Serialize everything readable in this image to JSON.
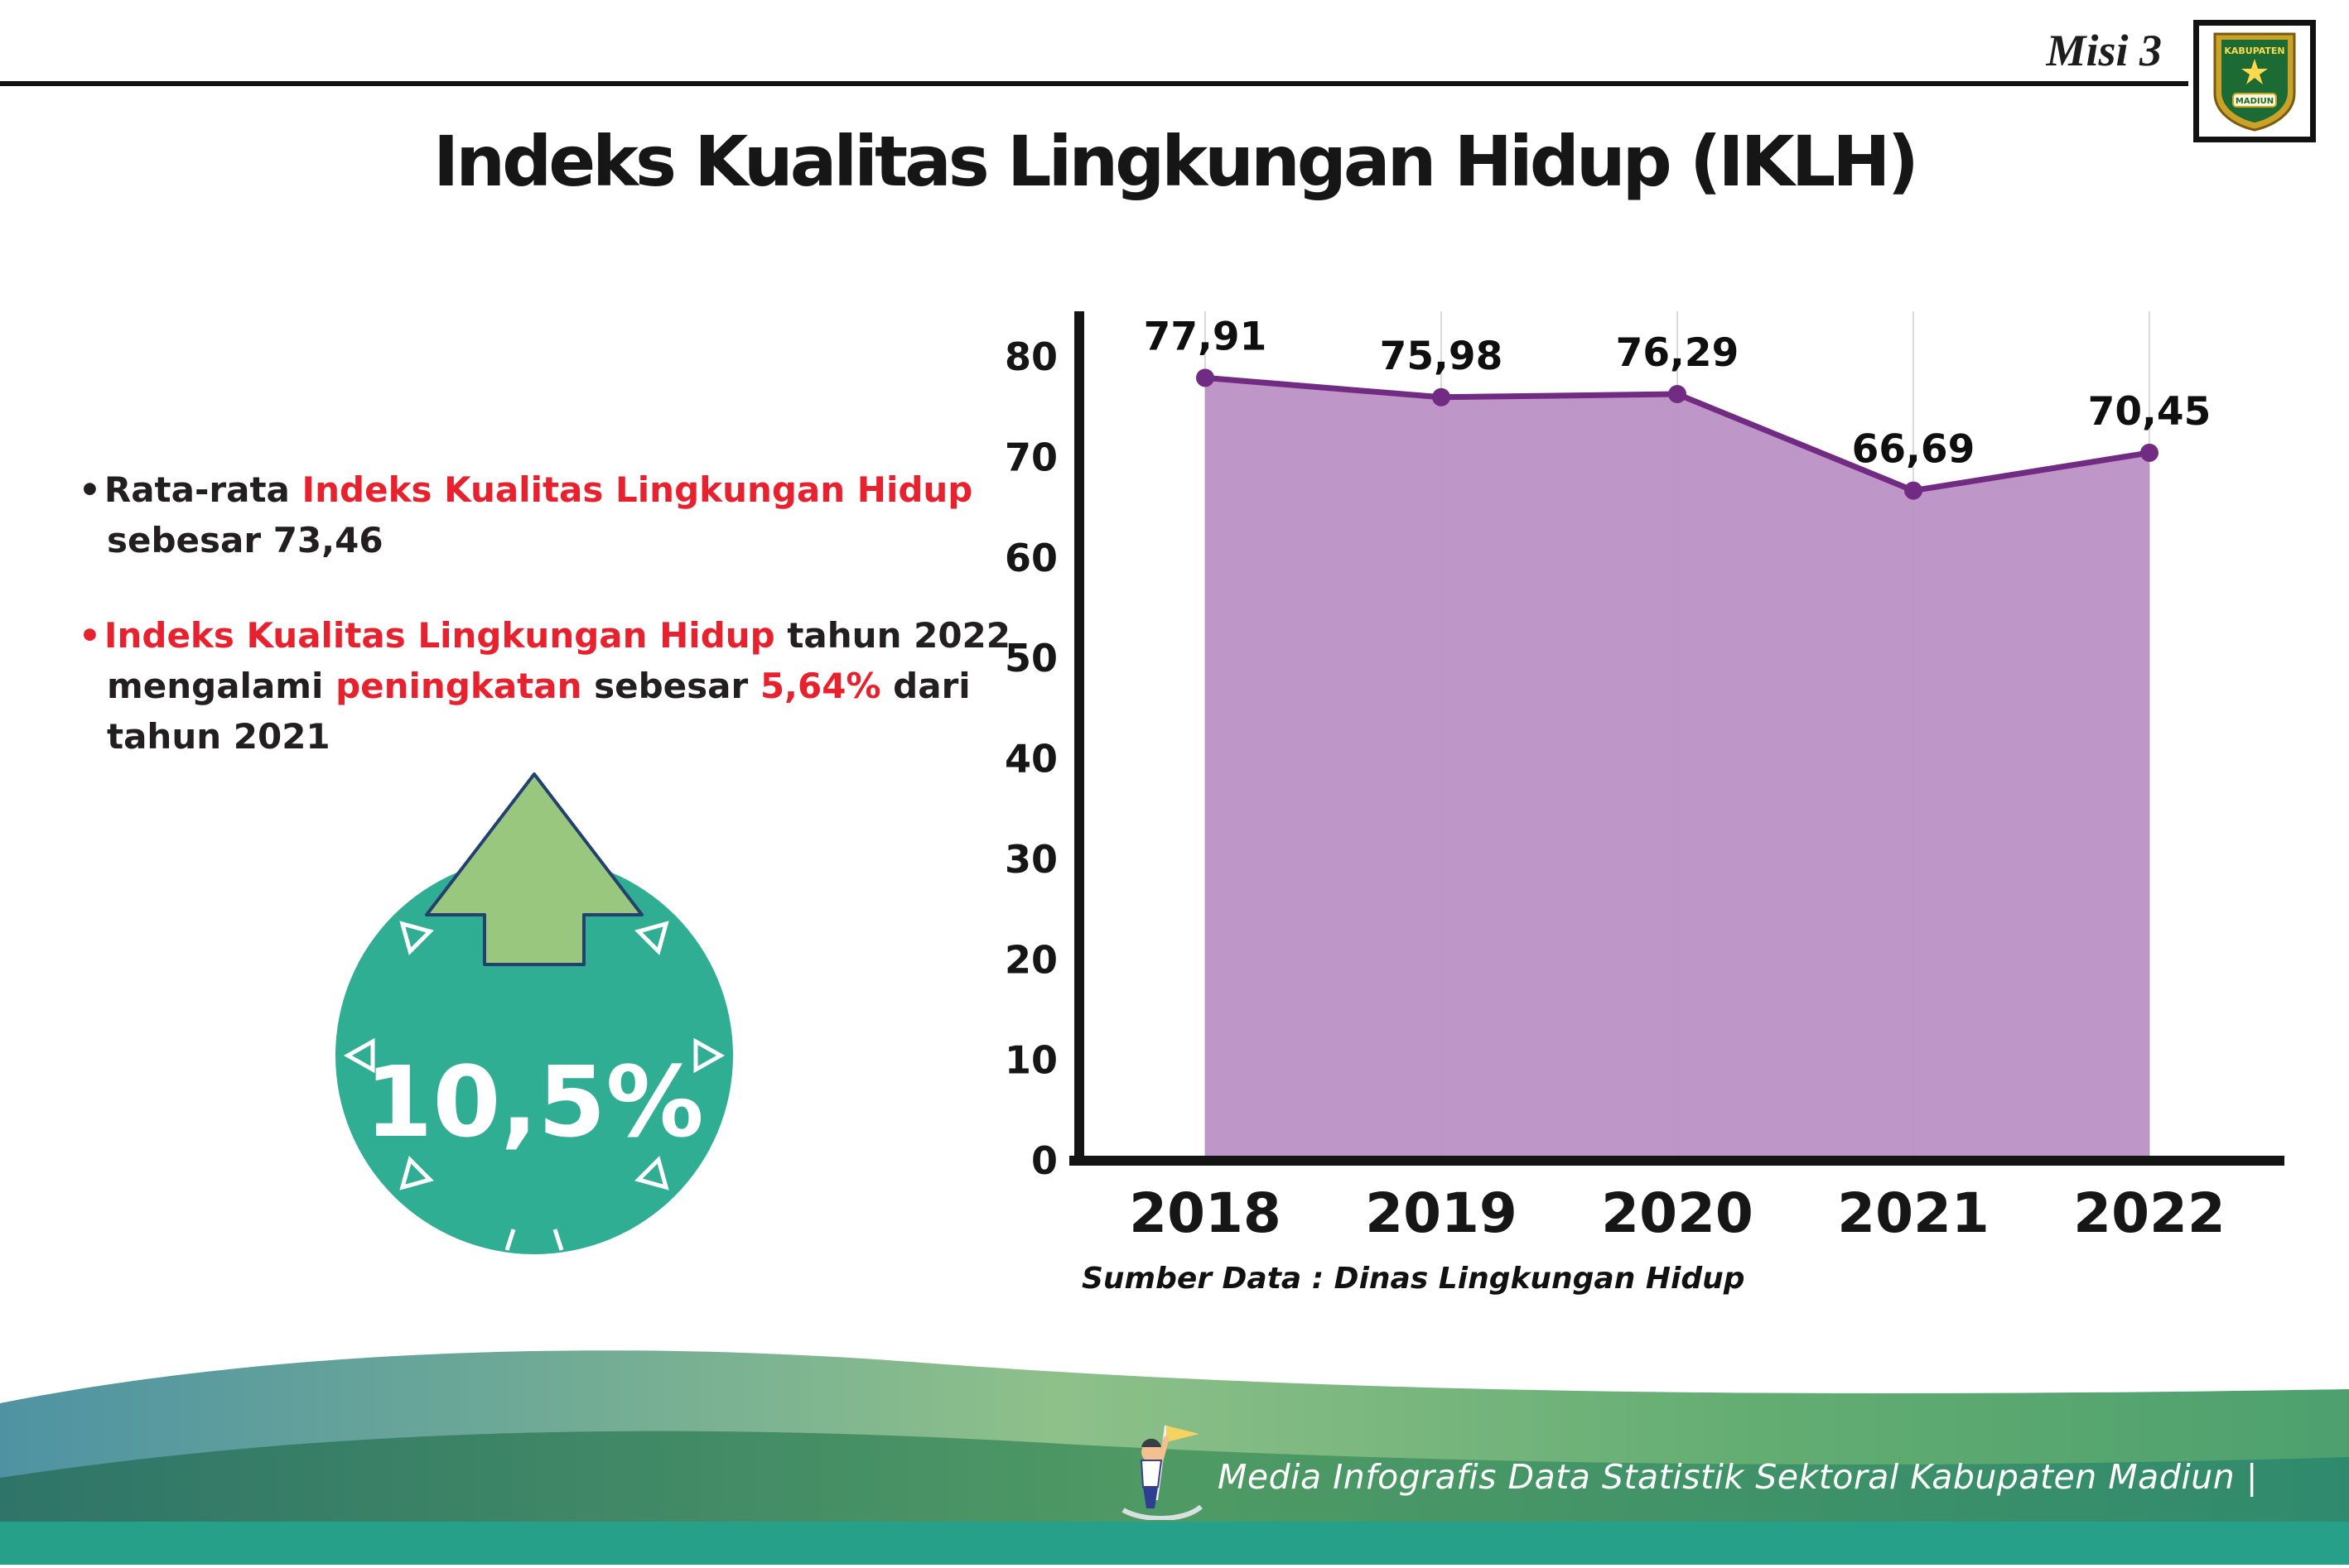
{
  "page": {
    "misi_label": "Misi 3",
    "title": "Indeks Kualitas Lingkungan Hidup (IKLH)"
  },
  "logo": {
    "top_text": "KABUPATEN",
    "bottom_text": "MADIUN"
  },
  "bullets": [
    {
      "segments": [
        {
          "text": "Rata-rata ",
          "color": "dark"
        },
        {
          "text": "Indeks Kualitas Lingkungan Hidup",
          "color": "red"
        },
        {
          "text": " sebesar 73,46",
          "color": "dark"
        }
      ]
    },
    {
      "segments": [
        {
          "text": "Indeks Kualitas Lingkungan Hidup",
          "color": "red"
        },
        {
          "text": " tahun 2022 mengalami ",
          "color": "dark"
        },
        {
          "text": "peningkatan",
          "color": "red"
        },
        {
          "text": " sebesar ",
          "color": "dark"
        },
        {
          "text": "5,64%",
          "color": "red"
        },
        {
          "text": " dari tahun 2021",
          "color": "dark"
        }
      ]
    }
  ],
  "badge": {
    "value": "10,5%"
  },
  "chart_data": {
    "type": "area",
    "title": "Indeks Kualitas Lingkungan Hidup (IKLH)",
    "categories": [
      "2018",
      "2019",
      "2020",
      "2021",
      "2022"
    ],
    "values": [
      77.91,
      75.98,
      76.29,
      66.69,
      70.45
    ],
    "point_labels": [
      "77,91",
      "75,98",
      "76,29",
      "66,69",
      "70,45"
    ],
    "xlabel": "",
    "ylabel": "",
    "ylim": [
      0,
      80
    ],
    "ytick_step": 10,
    "grid": "vertical-only",
    "legend": "none",
    "line_color": "#722b82",
    "fill_color": "#bc90c5",
    "source": "Sumber Data : Dinas Lingkungan Hidup"
  },
  "footer": {
    "caption": "Media Infografis Data Statistik Sektoral Kabupaten Madiun |"
  },
  "colors": {
    "accent_red": "#e8212e",
    "text_dark": "#231f20",
    "badge_teal": "#2fae94",
    "arrow_green": "#98c77d",
    "chart_line_purple": "#722b82",
    "chart_fill_purple": "#bc90c5",
    "footer_teal": "#27a08a"
  }
}
